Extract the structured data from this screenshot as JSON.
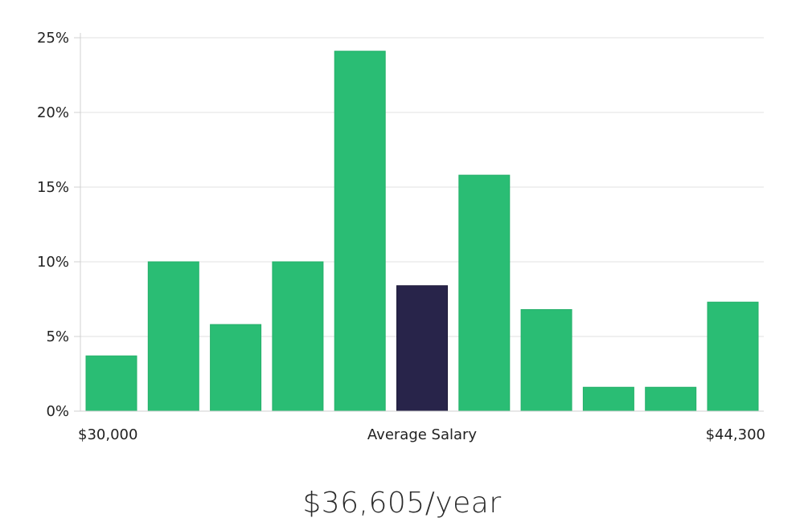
{
  "chart_data": {
    "type": "bar",
    "categories": [
      "1",
      "2",
      "3",
      "4",
      "5",
      "6",
      "7",
      "8",
      "9",
      "10",
      "11"
    ],
    "values": [
      3.7,
      10.0,
      5.8,
      10.0,
      24.1,
      8.4,
      15.8,
      6.8,
      1.6,
      1.6,
      7.3
    ],
    "highlight_index": 5,
    "ylim": [
      0,
      25
    ],
    "y_ticks": [
      0,
      5,
      10,
      15,
      20,
      25
    ],
    "y_tick_labels": [
      "0%",
      "5%",
      "10%",
      "15%",
      "20%",
      "25%"
    ],
    "x_labels": {
      "left": "$30,000",
      "center": "Average Salary",
      "right": "$44,300"
    },
    "grid": true,
    "colors": {
      "bar": "#2abd74",
      "bar_highlight": "#28244a",
      "grid": "#e2e2e2",
      "axis": "#d0d0d0"
    }
  },
  "headline": {
    "salary": "$36,605/year"
  }
}
